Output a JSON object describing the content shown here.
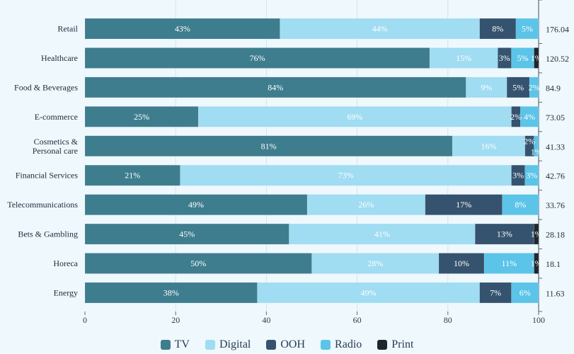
{
  "chart_data": {
    "type": "bar",
    "orientation": "horizontal",
    "stacked": "percent",
    "categories": [
      "Retail",
      "Healthcare",
      "Food & Beverages",
      "E-commerce",
      "Cosmetics & Personal care",
      "Financial Services",
      "Telecommunications",
      "Bets & Gambling",
      "Horeca",
      "Energy"
    ],
    "totals": [
      "176.04",
      "120.52",
      "84.9",
      "73.05",
      "41.33",
      "42.76",
      "33.76",
      "28.18",
      "18.1",
      "11.63"
    ],
    "series": [
      {
        "name": "TV",
        "color": "#3e7d8e",
        "values": [
          43,
          76,
          84,
          25,
          81,
          21,
          49,
          45,
          50,
          38
        ]
      },
      {
        "name": "Digital",
        "color": "#a0dcf2",
        "values": [
          44,
          15,
          9,
          69,
          16,
          73,
          26,
          41,
          28,
          49
        ]
      },
      {
        "name": "OOH",
        "color": "#35536e",
        "values": [
          8,
          3,
          5,
          2,
          2,
          3,
          17,
          13,
          10,
          7
        ]
      },
      {
        "name": "Radio",
        "color": "#5bc4e8",
        "values": [
          5,
          5,
          2,
          4,
          1,
          3,
          8,
          0,
          11,
          6
        ]
      },
      {
        "name": "Print",
        "color": "#1e272d",
        "values": [
          0,
          1,
          0,
          0,
          0,
          0,
          0,
          1,
          1,
          0
        ]
      }
    ],
    "xlim": [
      0,
      100
    ],
    "xticks": [
      "0",
      "20",
      "40",
      "60",
      "80",
      "100"
    ],
    "grid": true,
    "legend": "bottom"
  }
}
